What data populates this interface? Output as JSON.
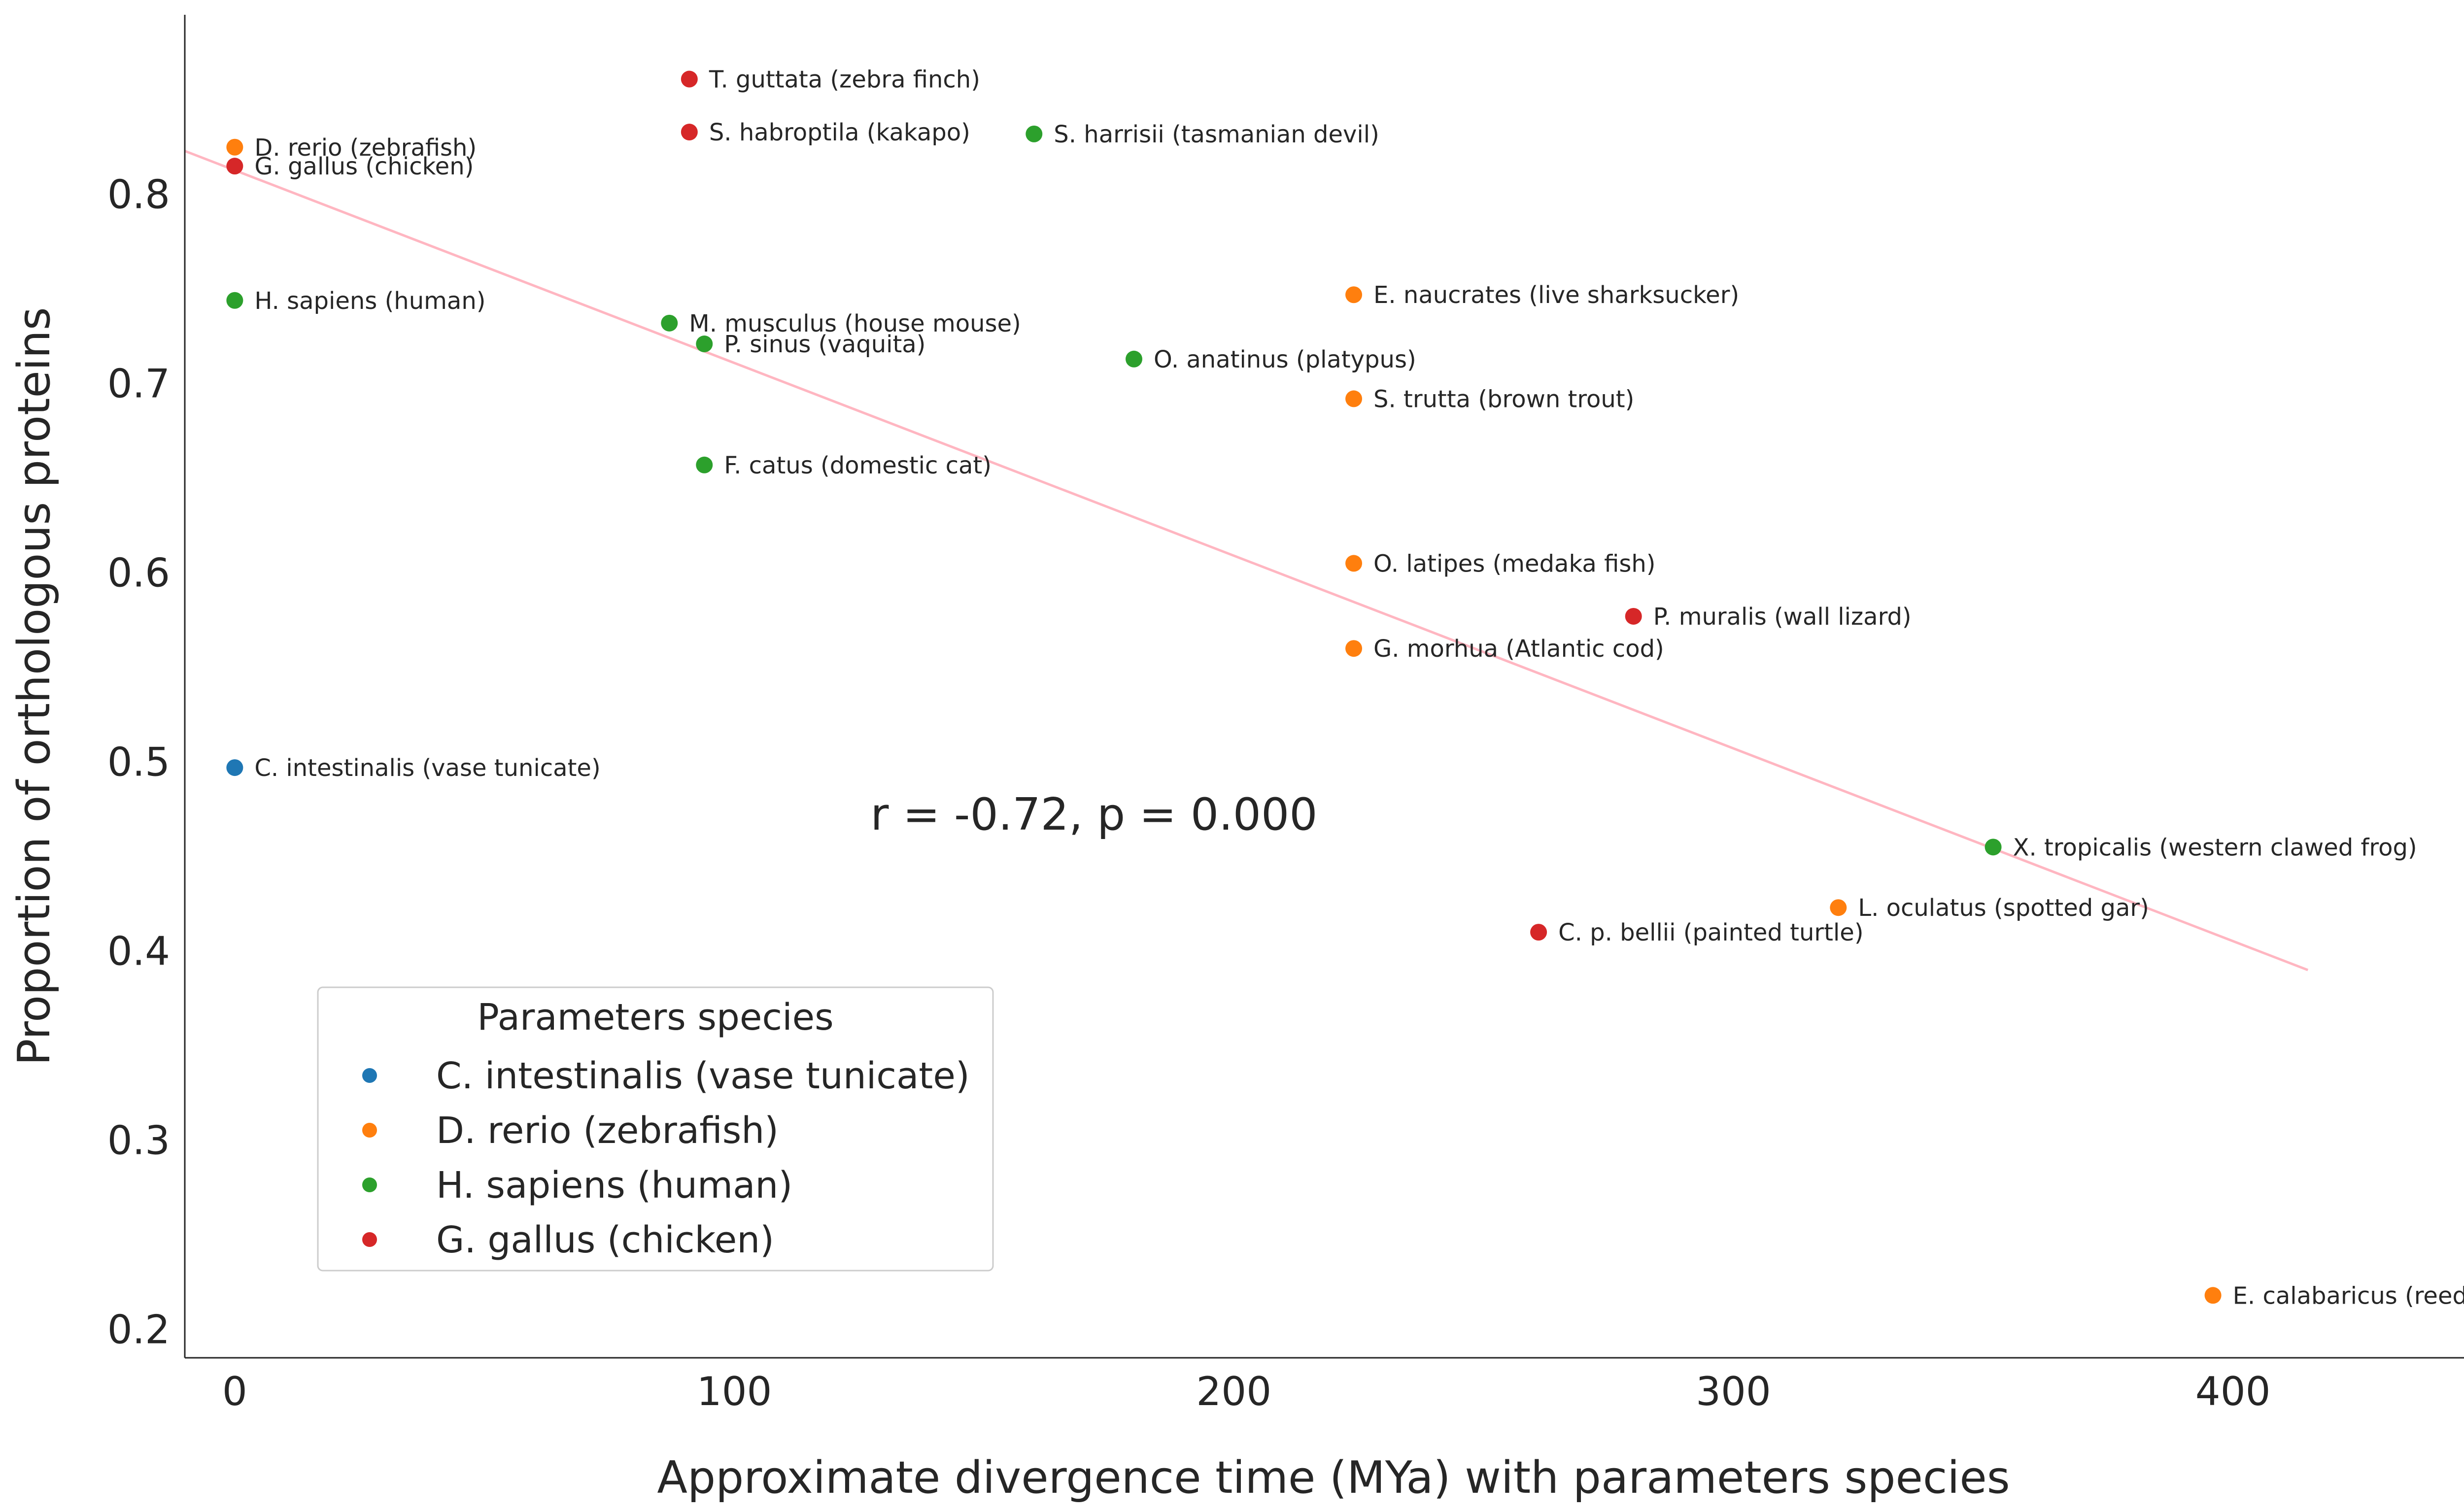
{
  "chart_data": {
    "type": "scatter",
    "title": "",
    "xlabel": "Approximate divergence time (MYa) with parameters species",
    "ylabel": "Proportion of orthologous proteins",
    "xlim": [
      -10,
      450
    ],
    "ylim": [
      0.185,
      0.895
    ],
    "xticks": [
      0,
      100,
      200,
      300,
      400
    ],
    "xtick_labels": [
      "0",
      "100",
      "200",
      "300",
      "400"
    ],
    "yticks": [
      0.2,
      0.3,
      0.4,
      0.5,
      0.6,
      0.7,
      0.8
    ],
    "ytick_labels": [
      "0.2",
      "0.3",
      "0.4",
      "0.5",
      "0.6",
      "0.7",
      "0.8"
    ],
    "grid": false,
    "legend": {
      "title": "Parameters species",
      "placement": "lower-left",
      "entries": [
        {
          "label": "C. intestinalis (vase tunicate)",
          "color": "#1f77b4"
        },
        {
          "label": "D. rerio (zebrafish)",
          "color": "#ff7f0e"
        },
        {
          "label": "H. sapiens (human)",
          "color": "#2ca02c"
        },
        {
          "label": "G. gallus (chicken)",
          "color": "#d62728"
        }
      ]
    },
    "annotation": "r = -0.72, p = 0.000",
    "annotation_position": {
      "x": 172,
      "y": 0.472
    },
    "regression": {
      "x": [
        -10,
        415
      ],
      "y": [
        0.823,
        0.39
      ],
      "color": "#ffb6c1"
    },
    "points": [
      {
        "x": 0,
        "y": 0.825,
        "label": "D. rerio (zebrafish)",
        "group": "D. rerio (zebrafish)",
        "color": "#ff7f0e"
      },
      {
        "x": 0,
        "y": 0.815,
        "label": "G. gallus (chicken)",
        "group": "G. gallus (chicken)",
        "color": "#d62728"
      },
      {
        "x": 0,
        "y": 0.744,
        "label": "H. sapiens (human)",
        "group": "H. sapiens (human)",
        "color": "#2ca02c"
      },
      {
        "x": 0,
        "y": 0.497,
        "label": "C. intestinalis (vase tunicate)",
        "group": "C. intestinalis (vase tunicate)",
        "color": "#1f77b4"
      },
      {
        "x": 91,
        "y": 0.861,
        "label": "T. guttata (zebra finch)",
        "group": "G. gallus (chicken)",
        "color": "#d62728"
      },
      {
        "x": 91,
        "y": 0.833,
        "label": "S. habroptila (kakapo)",
        "group": "G. gallus (chicken)",
        "color": "#d62728"
      },
      {
        "x": 160,
        "y": 0.832,
        "label": "S. harrisii (tasmanian devil)",
        "group": "H. sapiens (human)",
        "color": "#2ca02c"
      },
      {
        "x": 87,
        "y": 0.732,
        "label": "M. musculus (house mouse)",
        "group": "H. sapiens (human)",
        "color": "#2ca02c"
      },
      {
        "x": 94,
        "y": 0.721,
        "label": "P. sinus (vaquita)",
        "group": "H. sapiens (human)",
        "color": "#2ca02c"
      },
      {
        "x": 94,
        "y": 0.657,
        "label": "F. catus (domestic cat)",
        "group": "H. sapiens (human)",
        "color": "#2ca02c"
      },
      {
        "x": 180,
        "y": 0.713,
        "label": "O. anatinus (platypus)",
        "group": "H. sapiens (human)",
        "color": "#2ca02c"
      },
      {
        "x": 224,
        "y": 0.747,
        "label": "E. naucrates (live sharksucker)",
        "group": "D. rerio (zebrafish)",
        "color": "#ff7f0e"
      },
      {
        "x": 224,
        "y": 0.692,
        "label": "S. trutta (brown trout)",
        "group": "D. rerio (zebrafish)",
        "color": "#ff7f0e"
      },
      {
        "x": 224,
        "y": 0.605,
        "label": "O. latipes (medaka fish)",
        "group": "D. rerio (zebrafish)",
        "color": "#ff7f0e"
      },
      {
        "x": 224,
        "y": 0.56,
        "label": "G. morhua (Atlantic cod)",
        "group": "D. rerio (zebrafish)",
        "color": "#ff7f0e"
      },
      {
        "x": 280,
        "y": 0.577,
        "label": "P. muralis (wall lizard)",
        "group": "G. gallus (chicken)",
        "color": "#d62728"
      },
      {
        "x": 352,
        "y": 0.455,
        "label": "X. tropicalis (western clawed frog)",
        "group": "H. sapiens (human)",
        "color": "#2ca02c"
      },
      {
        "x": 321,
        "y": 0.423,
        "label": "L. oculatus (spotted gar)",
        "group": "D. rerio (zebrafish)",
        "color": "#ff7f0e"
      },
      {
        "x": 261,
        "y": 0.41,
        "label": "C. p. bellii (painted turtle)",
        "group": "G. gallus (chicken)",
        "color": "#d62728"
      },
      {
        "x": 396,
        "y": 0.218,
        "label": "E. calabaricus (reedfish)",
        "group": "D. rerio (zebrafish)",
        "color": "#ff7f0e"
      }
    ]
  }
}
